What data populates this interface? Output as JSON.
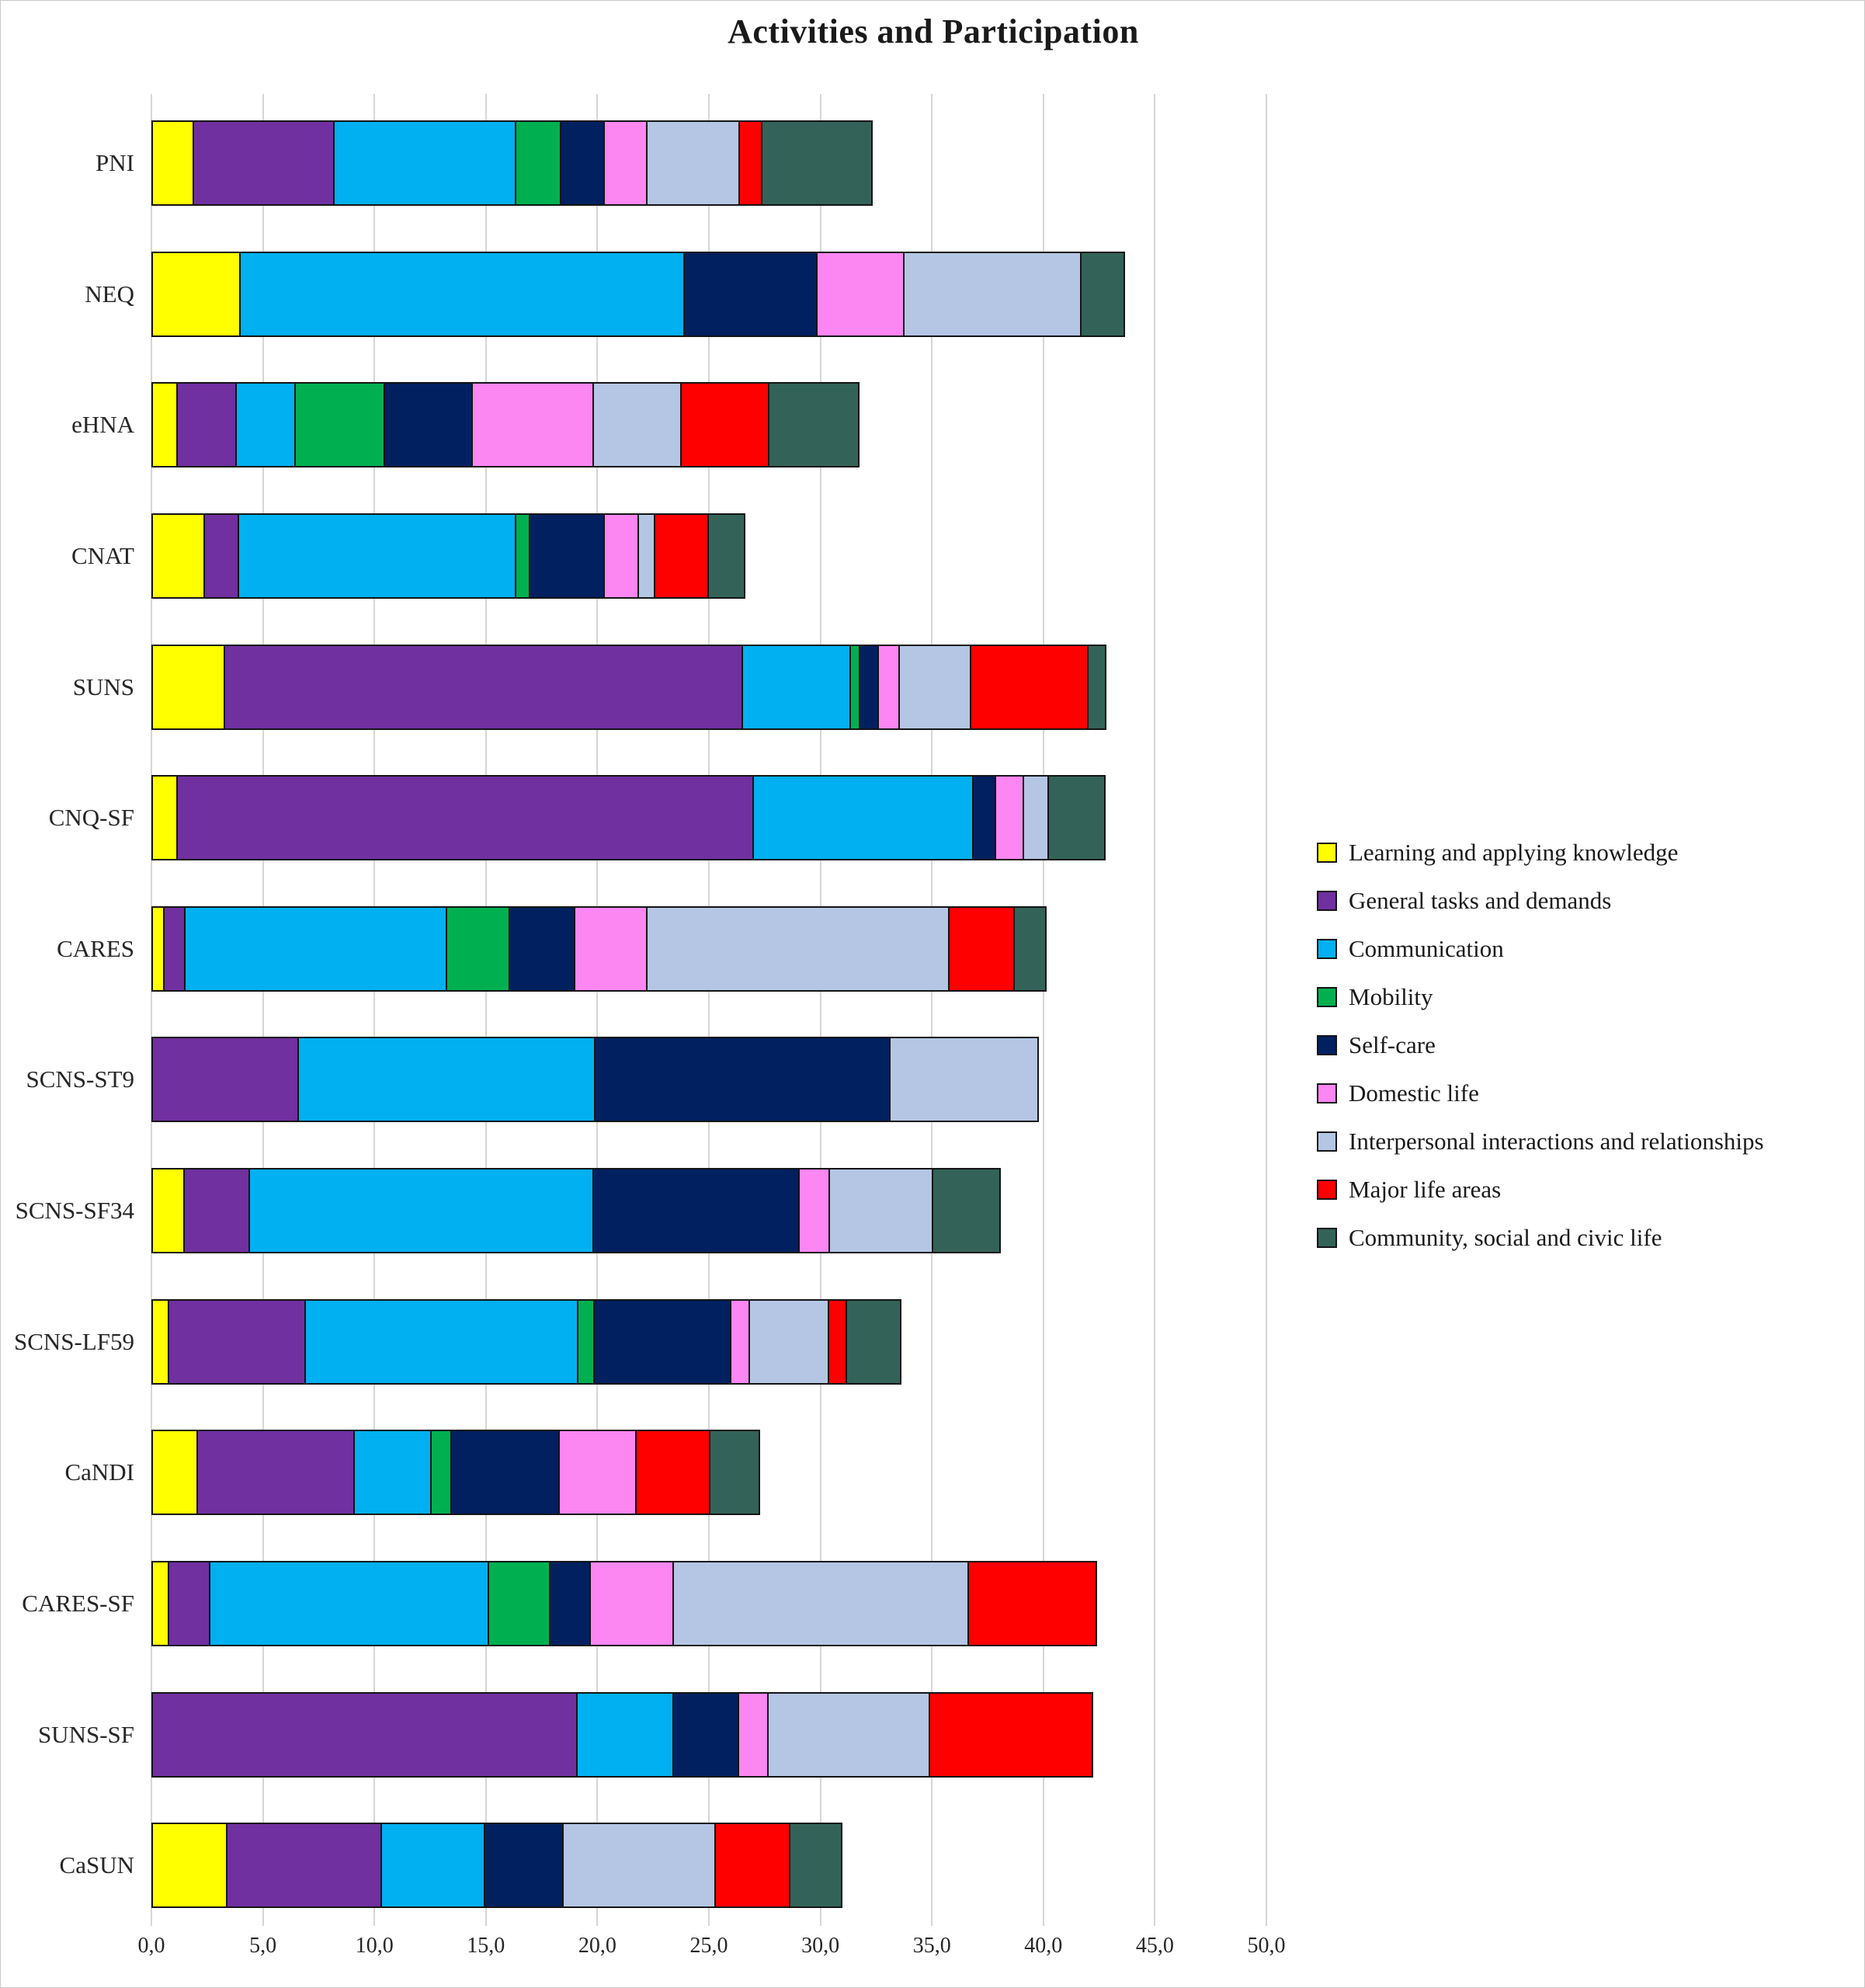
{
  "title": "Activities and Participation",
  "chart_data": {
    "type": "bar",
    "orientation": "horizontal",
    "stacked": true,
    "grid": true,
    "legend_position": "right",
    "title": "Activities and Participation",
    "categories": [
      "PNI",
      "NEQ",
      "eHNA",
      "CNAT",
      "SUNS",
      "CNQ-SF",
      "CARES",
      "SCNS-ST9",
      "SCNS-SF34",
      "SCNS-LF59",
      "CaNDI",
      "CARES-SF",
      "SUNS-SF",
      "CaSUN"
    ],
    "x_axis": {
      "min": 0,
      "max": 50,
      "tick_step": 5,
      "tick_labels": [
        "0,0",
        "5,0",
        "10,0",
        "15,0",
        "20,0",
        "25,0",
        "30,0",
        "35,0",
        "40,0",
        "45,0",
        "50,0"
      ]
    },
    "series": [
      {
        "name": "Learning and applying knowledge",
        "color": "#FFFF00",
        "values": [
          1.9,
          4.0,
          1.2,
          2.4,
          3.3,
          1.2,
          0.6,
          0,
          1.5,
          0.8,
          2.1,
          0.8,
          0,
          3.4
        ]
      },
      {
        "name": "General tasks and demands",
        "color": "#7030A0",
        "values": [
          6.4,
          0,
          2.7,
          1.6,
          23.3,
          25.9,
          1.0,
          6.6,
          3.0,
          6.2,
          7.1,
          1.9,
          19.1,
          7.0
        ]
      },
      {
        "name": "Communication",
        "color": "#00B0F0",
        "values": [
          8.2,
          20.0,
          2.7,
          12.5,
          4.9,
          9.9,
          11.8,
          13.4,
          15.5,
          12.3,
          3.5,
          12.6,
          4.4,
          4.7
        ]
      },
      {
        "name": "Mobility",
        "color": "#00B050",
        "values": [
          2.1,
          0,
          4.1,
          0.7,
          0.5,
          0,
          2.9,
          0,
          0,
          0.8,
          1.0,
          2.8,
          0,
          0
        ]
      },
      {
        "name": "Self-care",
        "color": "#002060",
        "values": [
          2.0,
          6.0,
          4.0,
          3.4,
          0.9,
          1.1,
          3.0,
          13.3,
          9.3,
          6.2,
          4.9,
          1.9,
          3.0,
          3.6
        ]
      },
      {
        "name": "Domestic life",
        "color": "#FC86F2",
        "values": [
          2.0,
          4.0,
          5.5,
          1.6,
          1.0,
          1.3,
          3.3,
          0,
          1.4,
          0.9,
          3.5,
          3.8,
          1.4,
          0
        ]
      },
      {
        "name": "Interpersonal interactions and relationships",
        "color": "#B4C6E4",
        "values": [
          4.2,
          8.0,
          4.0,
          0.8,
          3.3,
          1.2,
          13.6,
          6.7,
          4.7,
          3.6,
          0,
          13.3,
          7.3,
          6.9
        ]
      },
      {
        "name": "Major life areas",
        "color": "#FF0000",
        "values": [
          1.1,
          0,
          4.0,
          2.5,
          5.3,
          0,
          3.0,
          0,
          0,
          0.9,
          3.4,
          5.8,
          7.4,
          3.4
        ]
      },
      {
        "name": "Community, social and civic life",
        "color": "#336358",
        "values": [
          5.0,
          2.0,
          4.1,
          1.7,
          0.9,
          2.6,
          1.5,
          0,
          3.1,
          2.5,
          2.3,
          0,
          0,
          2.4
        ]
      }
    ]
  }
}
